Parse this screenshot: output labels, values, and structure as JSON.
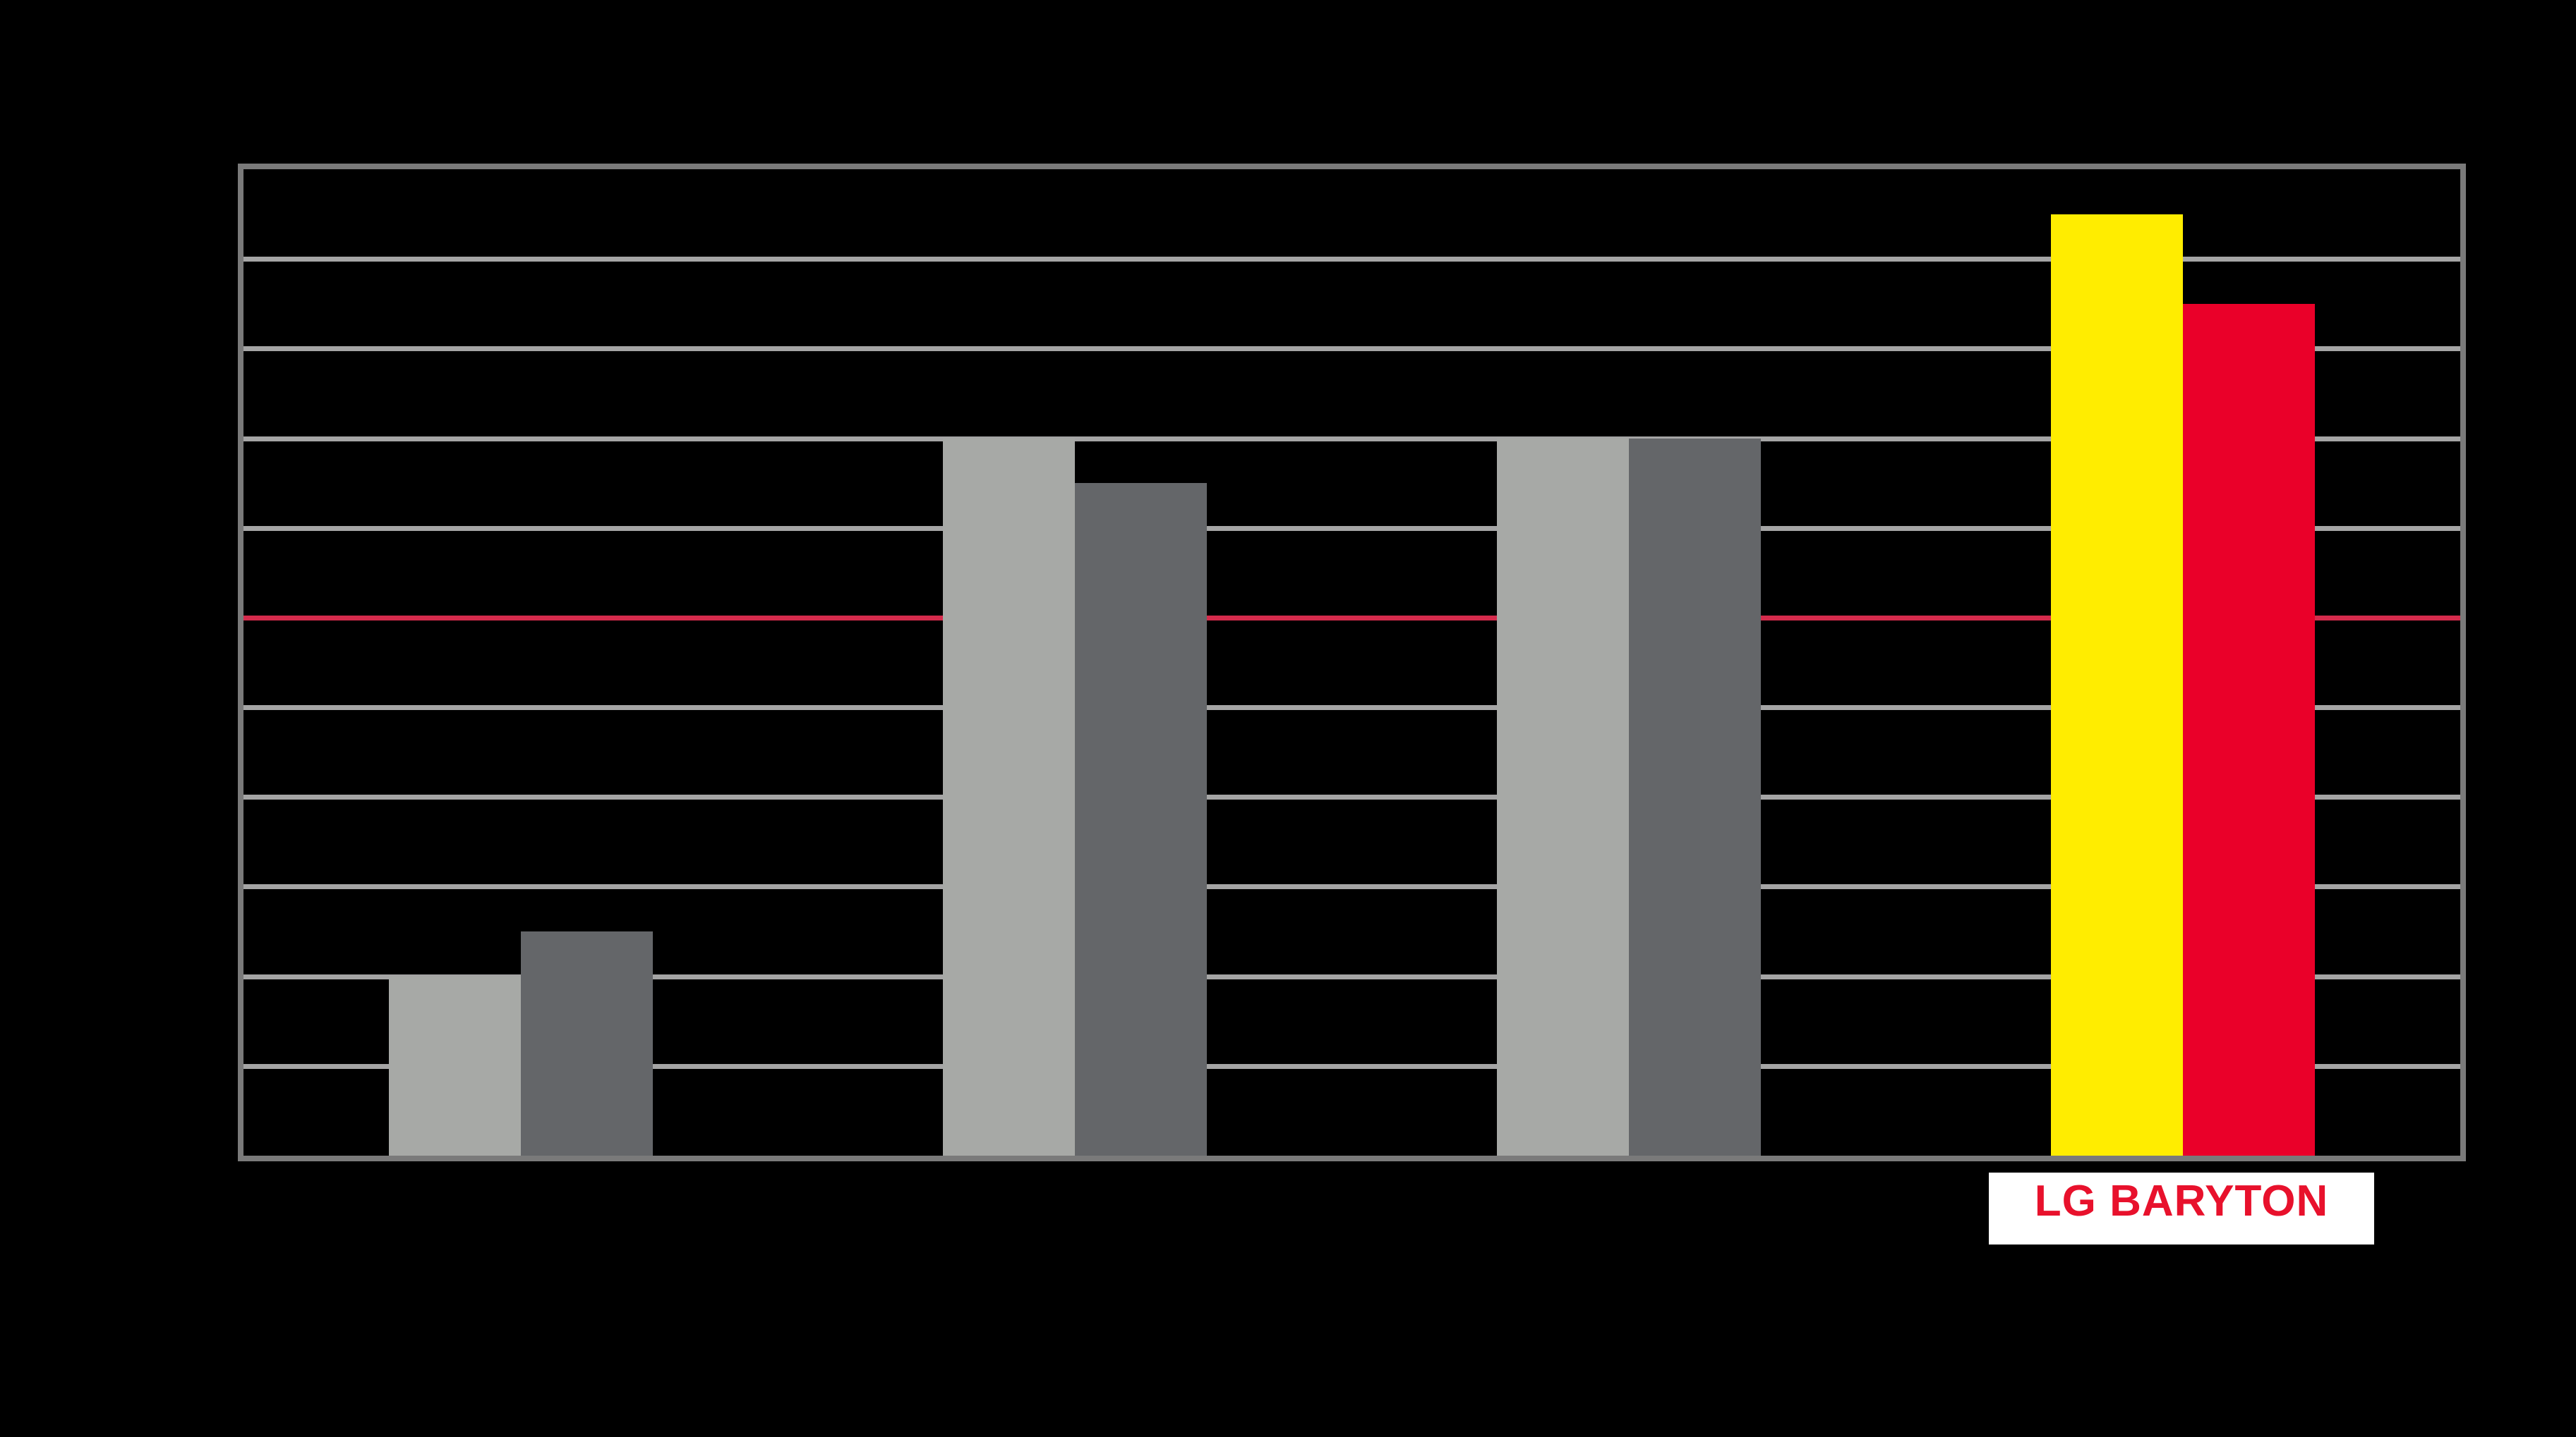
{
  "chart_data": {
    "type": "bar",
    "title": "",
    "xlabel": "",
    "ylabel": "",
    "categories": [
      "",
      "",
      "",
      "LG BARYTON"
    ],
    "series": [
      {
        "name": "left-bar-series",
        "values": [
          2,
          8,
          8,
          10.5
        ],
        "colors": [
          "#A7A9A6",
          "#A7A9A6",
          "#A7A9A6",
          "#FFED00"
        ]
      },
      {
        "name": "right-bar-series",
        "values": [
          2.5,
          7.5,
          8,
          9.5
        ],
        "colors": [
          "#646669",
          "#646669",
          "#646669",
          "#EA0029"
        ]
      }
    ],
    "ylim": [
      0,
      11
    ],
    "gridline_step": 1,
    "grid_on": true,
    "tick_labels_visible": false,
    "legend": "none",
    "reference_line": {
      "value": 6,
      "color": "#D52B4C"
    },
    "highlight_label": {
      "text": "LG BARYTON",
      "color": "#E8112C",
      "background": "#FFFFFF"
    },
    "palette": {
      "background": "#000000",
      "plot_border": "#7A7A7A",
      "gridline": "#A5A5A5",
      "light_bar": "#A7A9A6",
      "dark_bar": "#646669",
      "highlight_bar_1": "#FFED00",
      "highlight_bar_2": "#EA0029"
    }
  }
}
